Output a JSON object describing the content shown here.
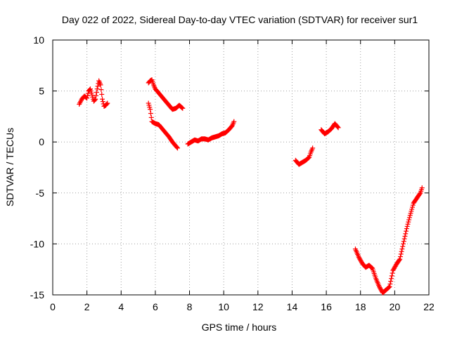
{
  "chart_data": {
    "type": "scatter",
    "title": "Day 022 of 2022, Sidereal Day-to-day VTEC variation (SDTVAR) for receiver sur1",
    "xlabel": "GPS time / hours",
    "ylabel": "SDTVAR / TECUs",
    "xlim": [
      0,
      22
    ],
    "ylim": [
      -15,
      10
    ],
    "xticks": [
      0,
      2,
      4,
      6,
      8,
      10,
      12,
      14,
      16,
      18,
      20,
      22
    ],
    "yticks": [
      -15,
      -10,
      -5,
      0,
      5,
      10
    ],
    "xtick_labels": [
      "0",
      "2",
      "4",
      "6",
      "8",
      "10",
      "12",
      "14",
      "16",
      "18",
      "20",
      "22"
    ],
    "ytick_labels": [
      "-15",
      "-10",
      "-5",
      "0",
      "5",
      "10"
    ],
    "grid": true,
    "marker": "plus",
    "color": "#ff0000",
    "series": [
      {
        "name": "segment-1",
        "x": [
          1.55,
          1.7,
          1.85,
          2.0,
          2.1,
          2.2,
          2.3,
          2.4,
          2.5,
          2.6,
          2.7,
          2.8,
          2.9,
          3.0,
          3.1,
          3.2
        ],
        "y": [
          3.7,
          4.2,
          4.5,
          4.3,
          5.0,
          5.2,
          4.6,
          4.0,
          4.2,
          5.2,
          6.0,
          5.6,
          4.2,
          3.5,
          3.6,
          3.8
        ]
      },
      {
        "name": "segment-2",
        "x": [
          5.6,
          5.7,
          5.8,
          5.9,
          6.0,
          6.2,
          6.4,
          6.6,
          6.8,
          7.0,
          7.2,
          7.4,
          7.6
        ],
        "y": [
          5.8,
          6.0,
          6.1,
          5.6,
          5.2,
          4.8,
          4.4,
          4.0,
          3.6,
          3.2,
          3.3,
          3.6,
          3.3
        ]
      },
      {
        "name": "segment-3",
        "x": [
          5.6,
          5.7,
          5.8,
          6.0,
          6.2,
          6.4,
          6.6,
          6.8,
          7.0,
          7.2,
          7.3
        ],
        "y": [
          3.8,
          3.2,
          2.0,
          1.8,
          1.7,
          1.3,
          0.9,
          0.5,
          0.0,
          -0.4,
          -0.6
        ]
      },
      {
        "name": "segment-4",
        "x": [
          7.9,
          8.1,
          8.3,
          8.5,
          8.7,
          8.9,
          9.1,
          9.3,
          9.5,
          9.7,
          9.9,
          10.1,
          10.3,
          10.5,
          10.6
        ],
        "y": [
          -0.2,
          0.0,
          0.2,
          0.1,
          0.3,
          0.3,
          0.2,
          0.4,
          0.5,
          0.6,
          0.8,
          0.9,
          1.2,
          1.6,
          2.0
        ]
      },
      {
        "name": "segment-5",
        "x": [
          14.2,
          14.4,
          14.6,
          14.8,
          15.0,
          15.1,
          15.2
        ],
        "y": [
          -1.8,
          -2.2,
          -2.0,
          -1.8,
          -1.5,
          -1.0,
          -0.6
        ]
      },
      {
        "name": "segment-6",
        "x": [
          15.7,
          15.9,
          16.1,
          16.3,
          16.5,
          16.7
        ],
        "y": [
          1.2,
          0.8,
          1.0,
          1.3,
          1.8,
          1.4
        ]
      },
      {
        "name": "segment-7",
        "x": [
          17.7,
          17.9,
          18.1,
          18.3,
          18.5,
          18.7,
          18.9,
          19.1,
          19.3,
          19.5,
          19.7,
          19.9,
          20.1,
          20.3,
          20.5,
          20.7,
          20.9,
          21.1,
          21.3,
          21.5,
          21.6
        ],
        "y": [
          -10.5,
          -11.3,
          -11.9,
          -12.3,
          -12.1,
          -12.4,
          -13.4,
          -14.2,
          -14.8,
          -14.5,
          -14.2,
          -12.6,
          -12.0,
          -11.5,
          -10.0,
          -8.5,
          -7.2,
          -6.0,
          -5.5,
          -5.0,
          -4.5
        ]
      }
    ]
  }
}
